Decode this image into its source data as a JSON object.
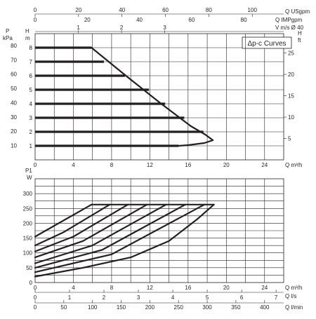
{
  "chart_data": [
    {
      "type": "line",
      "title": "",
      "legend": "Δp-c Curves",
      "xlabel": "Q m³/h",
      "x_ticks": [
        "0",
        "4",
        "8",
        "12",
        "16",
        "20",
        "24"
      ],
      "xlim": [
        0,
        26
      ],
      "ylabel": "H m",
      "ylim": [
        0,
        9
      ],
      "y_ticks": [
        "1",
        "2",
        "3",
        "4",
        "5",
        "6",
        "7",
        "8"
      ],
      "left_axis_label": "P kPa",
      "left_ticks": [
        "10",
        "20",
        "30",
        "40",
        "50",
        "60",
        "70",
        "80"
      ],
      "right_axis_label": "H ft",
      "right_ticks": [
        "5",
        "10",
        "15",
        "20",
        "25"
      ],
      "top_axes": [
        {
          "label": "Q USgpm",
          "ticks": [
            "0",
            "20",
            "40",
            "60",
            "80",
            "100"
          ]
        },
        {
          "label": "Q IMPgpm",
          "ticks": [
            "0",
            "20",
            "40",
            "60",
            "80"
          ]
        },
        {
          "label": "V m/s Ø 40",
          "ticks": [
            "1",
            "2",
            "3"
          ]
        }
      ],
      "grid": true,
      "series": [
        {
          "values": [
            [
              0,
              8
            ],
            [
              5.9,
              8
            ]
          ]
        },
        {
          "values": [
            [
              0,
              7
            ],
            [
              7.2,
              7
            ]
          ]
        },
        {
          "values": [
            [
              0,
              6
            ],
            [
              9.4,
              6
            ]
          ]
        },
        {
          "values": [
            [
              0,
              5
            ],
            [
              11.9,
              5
            ]
          ]
        },
        {
          "values": [
            [
              0,
              4
            ],
            [
              13.6,
              4
            ]
          ]
        },
        {
          "values": [
            [
              0,
              3
            ],
            [
              15.6,
              3
            ]
          ]
        },
        {
          "values": [
            [
              0,
              2
            ],
            [
              17.6,
              2
            ]
          ]
        },
        {
          "values": [
            [
              0,
              1
            ],
            [
              15.0,
              1
            ]
          ]
        }
      ],
      "max_curve": [
        [
          5.9,
          8
        ],
        [
          9.5,
          6
        ],
        [
          13,
          4.1
        ],
        [
          16.3,
          2.4
        ],
        [
          17.8,
          1.8
        ],
        [
          18.6,
          1.4
        ],
        [
          17.7,
          1.2
        ],
        [
          16.0,
          1.05
        ],
        [
          15.0,
          1.0
        ]
      ]
    },
    {
      "type": "line",
      "title": "",
      "ylabel": "P1 W",
      "ylim": [
        0,
        350
      ],
      "y_ticks": [
        "0",
        "50",
        "100",
        "150",
        "200",
        "250",
        "300"
      ],
      "xlabel": "Q m³/h",
      "xlim": [
        0,
        26
      ],
      "x_ticks": [
        "0",
        "4",
        "8",
        "12",
        "16",
        "20",
        "24"
      ],
      "bottom_axes": [
        {
          "label": "Q l/s",
          "ticks": [
            "0",
            "1",
            "2",
            "3",
            "4",
            "5",
            "6",
            "7"
          ]
        },
        {
          "label": "Q l/min",
          "ticks": [
            "0",
            "50",
            "100",
            "150",
            "200",
            "250",
            "300",
            "350",
            "400"
          ]
        }
      ],
      "grid": true,
      "series": [
        {
          "values": [
            [
              0,
              155
            ],
            [
              5.9,
              263
            ]
          ]
        },
        {
          "values": [
            [
              0,
              125
            ],
            [
              3,
              170
            ],
            [
              7.8,
              263
            ]
          ]
        },
        {
          "values": [
            [
              0,
              105
            ],
            [
              4,
              155
            ],
            [
              9.7,
              263
            ]
          ]
        },
        {
          "values": [
            [
              0,
              85
            ],
            [
              5,
              140
            ],
            [
              11.7,
              263
            ]
          ]
        },
        {
          "values": [
            [
              0,
              65
            ],
            [
              6,
              125
            ],
            [
              13.7,
              263
            ]
          ]
        },
        {
          "values": [
            [
              0,
              50
            ],
            [
              7,
              110
            ],
            [
              15.7,
              263
            ]
          ]
        },
        {
          "values": [
            [
              0,
              35
            ],
            [
              8,
              95
            ],
            [
              17.7,
              263
            ]
          ]
        },
        {
          "values": [
            [
              0,
              20
            ],
            [
              5,
              50
            ],
            [
              10,
              85
            ],
            [
              14,
              140
            ],
            [
              17,
              215
            ],
            [
              18.7,
              263
            ]
          ]
        }
      ],
      "cap": [
        [
          5.9,
          263
        ],
        [
          18.7,
          263
        ]
      ]
    }
  ]
}
